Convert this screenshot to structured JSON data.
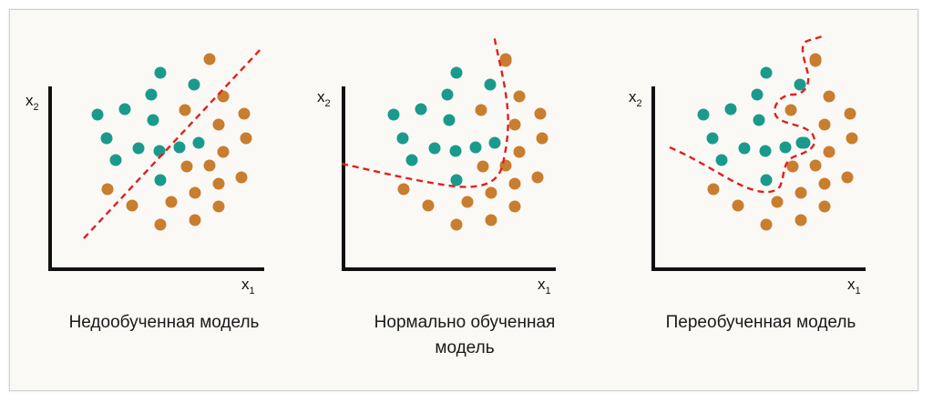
{
  "panels": [
    {
      "caption": "Недообученная модель",
      "x_label": "x",
      "x_sub": "1",
      "y_label": "x",
      "y_sub": "2"
    },
    {
      "caption": "Нормально обученная модель",
      "x_label": "x",
      "x_sub": "1",
      "y_label": "x",
      "y_sub": "2"
    },
    {
      "caption": "Переобученная модель",
      "x_label": "x",
      "x_sub": "1",
      "y_label": "x",
      "y_sub": "2"
    }
  ],
  "colors": {
    "class_a": "#1a9a8c",
    "class_b": "#c97d2e",
    "boundary": "#e02020",
    "axis": "#111111"
  }
}
